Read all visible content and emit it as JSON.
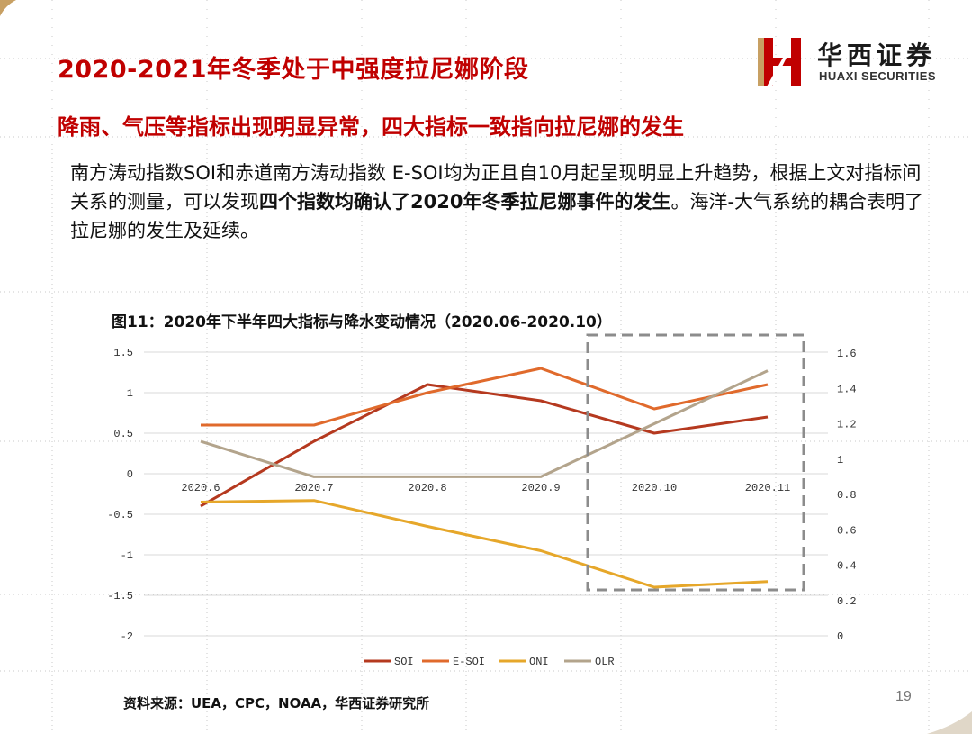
{
  "header": {
    "title": "2020-2021年冬季处于中强度拉尼娜阶段",
    "subtitle": "降雨、气压等指标出现明显异常，四大指标一致指向拉尼娜的发生"
  },
  "logo": {
    "name_cn": "华西证券",
    "name_en": "HUAXI SECURITIES",
    "colors": {
      "red": "#c00000",
      "gold": "#c8a063"
    }
  },
  "body": {
    "para_1": "南方涛动指数SOI和赤道南方涛动指数 E-SOI均为正且自10月起呈现明显上升趋势，根据上文对指标间关系的测量，可以发现",
    "para_bold": "四个指数均确认了2020年冬季拉尼娜事件的发生",
    "para_2": "。海洋-大气系统的耦合表明了拉尼娜的发生及延续。"
  },
  "chart_title": "图11：2020年下半年四大指标与降水变动情况（2020.06-2020.10）",
  "chart_data": {
    "type": "line",
    "categories": [
      "2020.6",
      "2020.7",
      "2020.8",
      "2020.9",
      "2020.10",
      "2020.11"
    ],
    "y_left": {
      "ticks": [
        "1.5",
        "1",
        "0.5",
        "0",
        "-0.5",
        "-1",
        "-1.5",
        "-2"
      ],
      "ylim": [
        -2,
        1.5
      ]
    },
    "y_right": {
      "ticks": [
        "1.6",
        "1.4",
        "1.2",
        "1",
        "0.8",
        "0.6",
        "0.4",
        "0.2",
        "0"
      ],
      "ylim": [
        0,
        1.6
      ]
    },
    "series": [
      {
        "name": "SOI",
        "axis": "left",
        "color": "#b5391f",
        "values": [
          -0.4,
          0.4,
          1.1,
          0.9,
          0.5,
          0.7
        ]
      },
      {
        "name": "E-SOI",
        "axis": "left",
        "color": "#e06a2c",
        "values": [
          0.6,
          0.6,
          1.0,
          1.3,
          0.8,
          1.1
        ]
      },
      {
        "name": "ONI",
        "axis": "left",
        "color": "#e6a72a",
        "values": [
          -0.35,
          -0.33,
          -0.65,
          -0.95,
          -1.4,
          -1.33
        ]
      },
      {
        "name": "OLR",
        "axis": "right",
        "color": "#b3a48c",
        "values": [
          1.1,
          0.9,
          0.9,
          0.9,
          1.2,
          1.5
        ]
      }
    ],
    "legend_position": "bottom",
    "highlight": "2020.10-2020.11"
  },
  "footer": {
    "source": "资料来源：UEA，CPC，NOAA，华西证券研究所",
    "page": "19"
  }
}
